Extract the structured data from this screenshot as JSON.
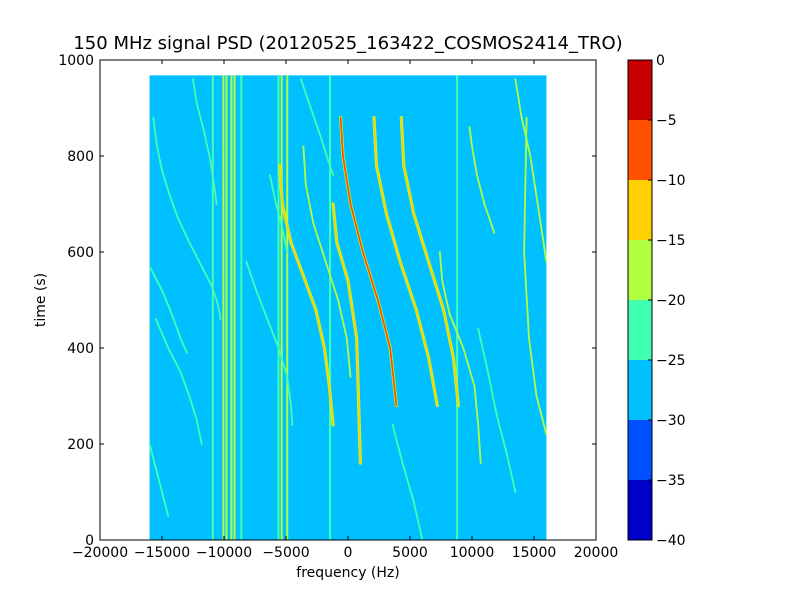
{
  "chart_data": {
    "type": "heatmap",
    "title": "150 MHz signal PSD (20120525_163422_COSMOS2414_TRO)",
    "xlabel": "frequency (Hz)",
    "ylabel": "time (s)",
    "xlim": [
      -20000,
      20000
    ],
    "ylim": [
      0,
      1000
    ],
    "x_ticks": [
      -20000,
      -15000,
      -10000,
      -5000,
      0,
      5000,
      10000,
      15000,
      20000
    ],
    "x_tick_labels": [
      "−20000",
      "−15000",
      "−10000",
      "−5000",
      "0",
      "5000",
      "10000",
      "15000",
      "20000"
    ],
    "y_ticks": [
      0,
      200,
      400,
      600,
      800,
      1000
    ],
    "y_tick_labels": [
      "0",
      "200",
      "400",
      "600",
      "800",
      "1000"
    ],
    "data_extent": {
      "x": [
        -16000,
        16000
      ],
      "y": [
        0,
        968
      ]
    },
    "background_level": -27.5,
    "colorbar": {
      "range": [
        -40,
        0
      ],
      "ticks": [
        0,
        -5,
        -10,
        -15,
        -20,
        -25,
        -30,
        -35,
        -40
      ],
      "tick_labels": [
        "0",
        "−5",
        "−10",
        "−15",
        "−20",
        "−25",
        "−30",
        "−35",
        "−40"
      ],
      "bins": [
        {
          "from": -40,
          "to": -35,
          "color": "#0000c8"
        },
        {
          "from": -35,
          "to": -30,
          "color": "#0050ff"
        },
        {
          "from": -30,
          "to": -25,
          "color": "#00c0ff"
        },
        {
          "from": -25,
          "to": -20,
          "color": "#40ffb0"
        },
        {
          "from": -20,
          "to": -15,
          "color": "#b0ff40"
        },
        {
          "from": -15,
          "to": -10,
          "color": "#ffd000"
        },
        {
          "from": -10,
          "to": -5,
          "color": "#ff5000"
        },
        {
          "from": -5,
          "to": 0,
          "color": "#c80000"
        }
      ]
    },
    "vertical_lines": [
      {
        "x": -10900,
        "level": -22.5
      },
      {
        "x": -10050,
        "level": -17.5
      },
      {
        "x": -9800,
        "level": -17.5
      },
      {
        "x": -9400,
        "level": -17.5
      },
      {
        "x": -9150,
        "level": -17.5
      },
      {
        "x": -8600,
        "level": -22.5
      },
      {
        "x": -5600,
        "level": -22.5
      },
      {
        "x": -5350,
        "level": -17.5
      },
      {
        "x": -4900,
        "level": -17.5
      },
      {
        "x": -1450,
        "level": -22.5
      },
      {
        "x": 8800,
        "level": -22.5
      }
    ],
    "tracks": [
      {
        "name": "track-1",
        "level": -22.5,
        "x": [
          -16000,
          -15000,
          -14200,
          -13500,
          -13000
        ],
        "y": [
          570,
          520,
          470,
          420,
          390
        ]
      },
      {
        "name": "track-2",
        "level": -22.5,
        "x": [
          -15700,
          -15400,
          -15000,
          -14400,
          -13700,
          -12800,
          -11800,
          -11000,
          -10600,
          -10400,
          -10300
        ],
        "y": [
          880,
          820,
          770,
          720,
          670,
          620,
          570,
          530,
          500,
          480,
          460
        ]
      },
      {
        "name": "track-3",
        "level": -22.5,
        "x": [
          -15500,
          -14500,
          -13500,
          -12800,
          -12200,
          -11800
        ],
        "y": [
          460,
          400,
          350,
          300,
          250,
          200
        ]
      },
      {
        "name": "track-4",
        "level": -22.5,
        "x": [
          -16000,
          -15500,
          -15000,
          -14500
        ],
        "y": [
          200,
          150,
          100,
          50
        ]
      },
      {
        "name": "track-5",
        "level": -22.5,
        "x": [
          -12500,
          -12200,
          -11600,
          -11100,
          -10800,
          -10600
        ],
        "y": [
          960,
          910,
          850,
          790,
          740,
          700
        ]
      },
      {
        "name": "track-6",
        "level": -22.5,
        "x": [
          -8200,
          -7400,
          -6500,
          -5600,
          -4900,
          -4600,
          -4500
        ],
        "y": [
          580,
          520,
          460,
          400,
          340,
          280,
          240
        ]
      },
      {
        "name": "track-7",
        "level": -22.5,
        "x": [
          -6300,
          -5800,
          -5300,
          -4900
        ],
        "y": [
          760,
          700,
          650,
          600
        ]
      },
      {
        "name": "track-8",
        "level": -22.5,
        "x": [
          -3800,
          -3000,
          -2200,
          -1600,
          -1200
        ],
        "y": [
          960,
          900,
          840,
          790,
          760
        ]
      },
      {
        "name": "track-9",
        "level": -12.5,
        "x": [
          -5500,
          -5300,
          -4600,
          -3600,
          -2600,
          -1900,
          -1500,
          -1200
        ],
        "y": [
          780,
          700,
          620,
          550,
          480,
          400,
          320,
          240
        ]
      },
      {
        "name": "track-10",
        "level": -17.5,
        "x": [
          -3600,
          -3400,
          -2800,
          -1800,
          -800,
          -100,
          200
        ],
        "y": [
          820,
          740,
          660,
          580,
          500,
          420,
          340
        ]
      },
      {
        "name": "track-11",
        "level": -12.5,
        "x": [
          -1200,
          -900,
          0,
          700,
          1000
        ],
        "y": [
          700,
          620,
          540,
          420,
          160
        ]
      },
      {
        "name": "track-12",
        "level": -7.5,
        "x": [
          -600,
          -400,
          200,
          1200,
          2400,
          3400,
          3900
        ],
        "y": [
          880,
          800,
          700,
          600,
          500,
          400,
          280
        ]
      },
      {
        "name": "track-13",
        "level": -12.5,
        "x": [
          2100,
          2300,
          3100,
          4200,
          5500,
          6500,
          7200
        ],
        "y": [
          880,
          780,
          680,
          580,
          480,
          380,
          280
        ]
      },
      {
        "name": "track-14",
        "level": -12.5,
        "x": [
          4300,
          4500,
          5300,
          6500,
          7700,
          8500,
          8900
        ],
        "y": [
          880,
          780,
          680,
          580,
          480,
          380,
          280
        ]
      },
      {
        "name": "track-15",
        "level": -17.5,
        "x": [
          7400,
          7600,
          8200,
          9300,
          10200,
          10500,
          10700
        ],
        "y": [
          600,
          540,
          470,
          400,
          320,
          240,
          160
        ]
      },
      {
        "name": "track-16",
        "level": -17.5,
        "x": [
          9800,
          10000,
          10400,
          11000,
          11800
        ],
        "y": [
          860,
          820,
          760,
          700,
          640
        ]
      },
      {
        "name": "track-17",
        "level": -17.5,
        "x": [
          13500,
          14000,
          14700,
          15300,
          16000
        ],
        "y": [
          960,
          880,
          800,
          700,
          580
        ]
      },
      {
        "name": "track-18",
        "level": -17.5,
        "x": [
          14400,
          14200,
          14600,
          15200,
          16000
        ],
        "y": [
          880,
          600,
          420,
          300,
          220
        ]
      },
      {
        "name": "track-19",
        "level": -22.5,
        "x": [
          10500,
          11200,
          12000,
          12800,
          13500
        ],
        "y": [
          440,
          360,
          260,
          180,
          100
        ]
      },
      {
        "name": "track-20",
        "level": -22.5,
        "x": [
          3600,
          4400,
          5300,
          6000
        ],
        "y": [
          240,
          160,
          80,
          0
        ]
      }
    ]
  }
}
